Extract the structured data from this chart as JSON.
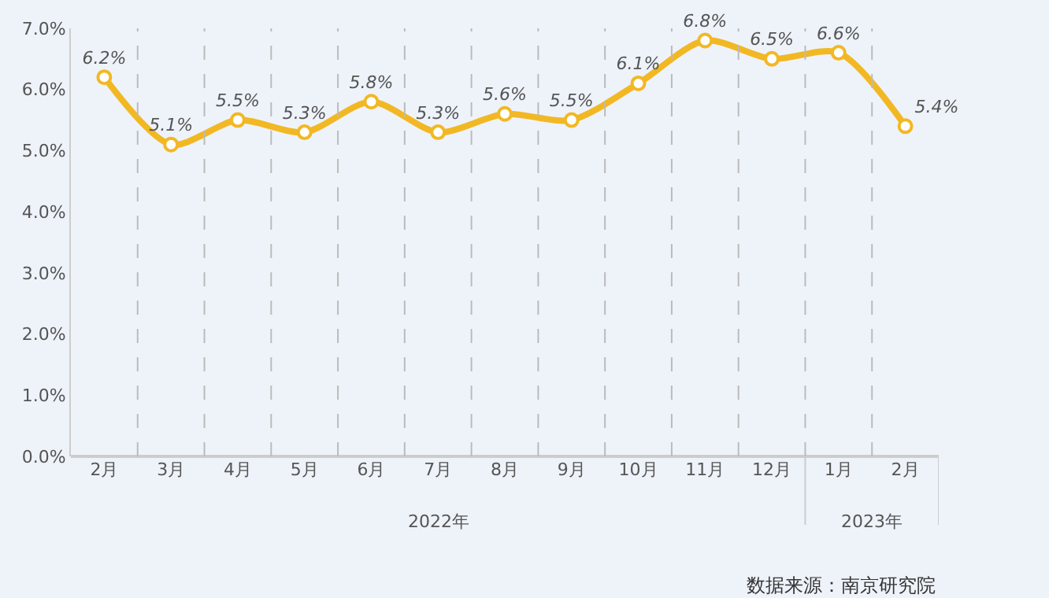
{
  "chart_data": {
    "type": "line",
    "categories": [
      "2月",
      "3月",
      "4月",
      "5月",
      "6月",
      "7月",
      "8月",
      "9月",
      "10月",
      "11月",
      "12月",
      "1月",
      "2月"
    ],
    "series": [
      {
        "color": "#f2b824",
        "values": [
          6.2,
          5.1,
          5.5,
          5.3,
          5.8,
          5.3,
          5.6,
          5.5,
          6.1,
          6.8,
          6.5,
          6.6,
          5.4
        ],
        "value_labels": [
          "6.2%",
          "5.1%",
          "5.5%",
          "5.3%",
          "5.8%",
          "5.3%",
          "5.6%",
          "5.5%",
          "6.1%",
          "6.8%",
          "6.5%",
          "6.6%",
          "5.4%"
        ]
      }
    ],
    "ylim": [
      0,
      7
    ],
    "yticks": [
      {
        "value": 0,
        "label": "0.0%"
      },
      {
        "value": 1,
        "label": "1.0%"
      },
      {
        "value": 2,
        "label": "2.0%"
      },
      {
        "value": 3,
        "label": "3.0%"
      },
      {
        "value": 4,
        "label": "4.0%"
      },
      {
        "value": 5,
        "label": "5.0%"
      },
      {
        "value": 6,
        "label": "6.0%"
      },
      {
        "value": 7,
        "label": "7.0%"
      }
    ],
    "grid": "x",
    "marker": "circle",
    "line_style": "solid",
    "annotations": [
      "2022年",
      "2023年",
      "数据来源：南京研究院"
    ]
  }
}
